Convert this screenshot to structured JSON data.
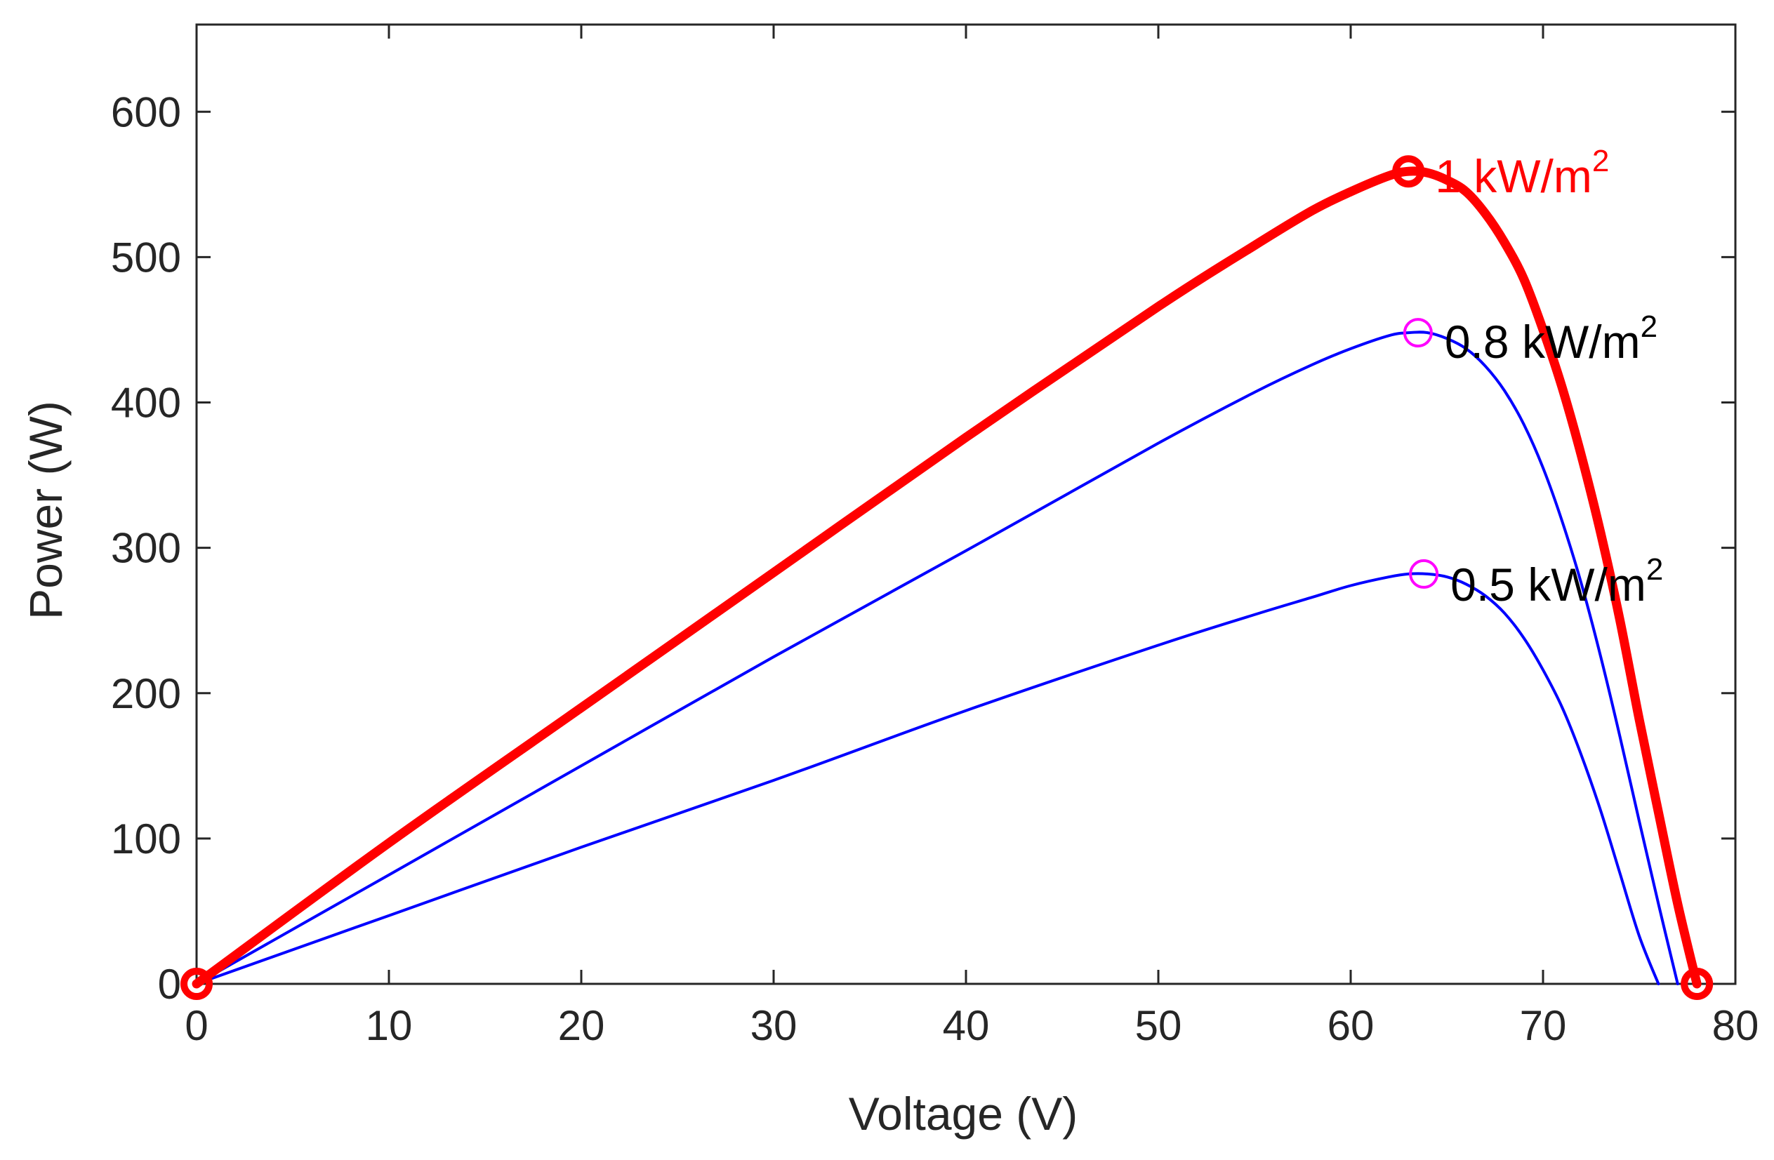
{
  "chart_data": {
    "type": "line",
    "title": "",
    "xlabel": "Voltage (V)",
    "ylabel": "Power (W)",
    "xlim": [
      0,
      80
    ],
    "ylim": [
      0,
      660
    ],
    "xticks": [
      0,
      10,
      20,
      30,
      40,
      50,
      60,
      70,
      80
    ],
    "yticks": [
      0,
      100,
      200,
      300,
      400,
      500,
      600
    ],
    "xtick_labels": [
      "0",
      "10",
      "20",
      "30",
      "40",
      "50",
      "60",
      "70",
      "80"
    ],
    "ytick_labels": [
      "0",
      "100",
      "200",
      "300",
      "400",
      "500",
      "600"
    ],
    "grid": false,
    "legend": null,
    "colors": {
      "highlight": "#ff0000",
      "series": "#0000ff",
      "mpp_marker": "#ff00ff",
      "axis": "#262626",
      "label_black": "#000000"
    },
    "series": [
      {
        "name": "1 kW/m2",
        "style": "thick-red",
        "points": [
          [
            0,
            0
          ],
          [
            10,
            97
          ],
          [
            20,
            190
          ],
          [
            30,
            283
          ],
          [
            40,
            376
          ],
          [
            50,
            466
          ],
          [
            55,
            508
          ],
          [
            58,
            532
          ],
          [
            60,
            545
          ],
          [
            62,
            556
          ],
          [
            63,
            559
          ],
          [
            64,
            558
          ],
          [
            65,
            553
          ],
          [
            66,
            545
          ],
          [
            67,
            530
          ],
          [
            68,
            510
          ],
          [
            69,
            485
          ],
          [
            70,
            450
          ],
          [
            71,
            410
          ],
          [
            72,
            363
          ],
          [
            73,
            310
          ],
          [
            74,
            250
          ],
          [
            75,
            182
          ],
          [
            76,
            118
          ],
          [
            77,
            55
          ],
          [
            78,
            0
          ]
        ],
        "mpp": [
          63,
          559
        ],
        "voc": [
          78,
          0
        ],
        "origin": [
          0,
          0
        ]
      },
      {
        "name": "0.8 kW/m2",
        "style": "thin-blue",
        "points": [
          [
            0,
            0
          ],
          [
            10,
            75
          ],
          [
            20,
            150
          ],
          [
            30,
            225
          ],
          [
            40,
            298
          ],
          [
            50,
            372
          ],
          [
            55,
            407
          ],
          [
            58,
            426
          ],
          [
            60,
            437
          ],
          [
            62,
            446
          ],
          [
            63,
            448
          ],
          [
            64,
            448
          ],
          [
            65,
            444
          ],
          [
            66,
            437
          ],
          [
            67,
            425
          ],
          [
            68,
            408
          ],
          [
            69,
            385
          ],
          [
            70,
            355
          ],
          [
            71,
            318
          ],
          [
            72,
            275
          ],
          [
            73,
            225
          ],
          [
            74,
            170
          ],
          [
            75,
            112
          ],
          [
            76,
            55
          ],
          [
            77,
            0
          ]
        ],
        "mpp": [
          63.5,
          448
        ]
      },
      {
        "name": "0.5 kW/m2",
        "style": "thin-blue",
        "points": [
          [
            0,
            0
          ],
          [
            10,
            47
          ],
          [
            20,
            94
          ],
          [
            30,
            140
          ],
          [
            40,
            188
          ],
          [
            50,
            233
          ],
          [
            55,
            254
          ],
          [
            58,
            266
          ],
          [
            60,
            274
          ],
          [
            62,
            280
          ],
          [
            63,
            282
          ],
          [
            64,
            282
          ],
          [
            65,
            280
          ],
          [
            66,
            275
          ],
          [
            67,
            267
          ],
          [
            68,
            255
          ],
          [
            69,
            238
          ],
          [
            70,
            216
          ],
          [
            71,
            190
          ],
          [
            72,
            157
          ],
          [
            73,
            119
          ],
          [
            74,
            76
          ],
          [
            75,
            33
          ],
          [
            76,
            0
          ]
        ],
        "mpp": [
          63.8,
          282
        ]
      }
    ],
    "annotations": [
      {
        "base": "1 kW/m",
        "sup": "2",
        "color": "#ff0000"
      },
      {
        "base": "0.8 kW/m",
        "sup": "2",
        "color": "#000000"
      },
      {
        "base": "0.5 kW/m",
        "sup": "2",
        "color": "#000000"
      }
    ]
  }
}
